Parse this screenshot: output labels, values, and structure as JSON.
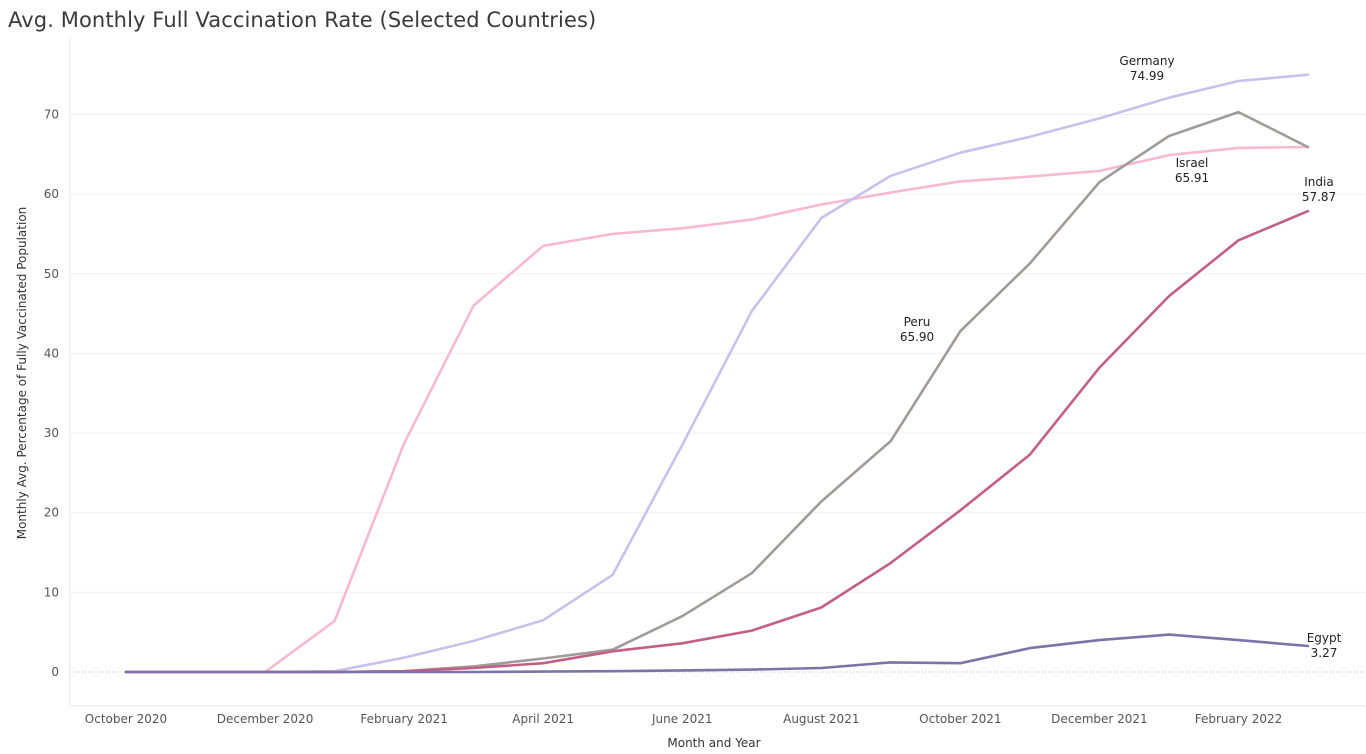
{
  "chart_data": {
    "type": "line",
    "title": "Avg. Monthly Full Vaccination Rate (Selected Countries)",
    "xlabel": "Month and Year",
    "ylabel": "Monthly Avg. Percentage of Fully Vaccinated Population",
    "ylim": [
      -4.5,
      79.5
    ],
    "yticks": [
      0,
      10,
      20,
      30,
      40,
      50,
      60,
      70
    ],
    "grid": true,
    "legend": "none (end-of-line labels)",
    "x": [
      "2020-10",
      "2020-11",
      "2020-12",
      "2021-01",
      "2021-02",
      "2021-03",
      "2021-04",
      "2021-05",
      "2021-06",
      "2021-07",
      "2021-08",
      "2021-09",
      "2021-10",
      "2021-11",
      "2021-12",
      "2022-01",
      "2022-02",
      "2022-03"
    ],
    "xtick_labels": [
      "October 2020",
      "December 2020",
      "February 2021",
      "April 2021",
      "June 2021",
      "August 2021",
      "October 2021",
      "December 2021",
      "February 2022"
    ],
    "series": [
      {
        "name": "Israel",
        "color": "#F7B8D2",
        "label_value": "65.91",
        "values": [
          0,
          0,
          0,
          6.4,
          28.7,
          46.0,
          53.5,
          55.0,
          55.7,
          56.8,
          58.7,
          60.2,
          61.6,
          62.2,
          62.9,
          64.9,
          65.8,
          65.91
        ]
      },
      {
        "name": "Germany",
        "color": "#C9C0EC",
        "label_value": "74.99",
        "values": [
          0,
          0,
          0,
          0.1,
          1.8,
          3.9,
          6.5,
          12.2,
          28.5,
          45.3,
          57.0,
          62.3,
          65.2,
          67.2,
          69.5,
          72.1,
          74.2,
          74.99
        ]
      },
      {
        "name": "Peru",
        "color": "#A09A99",
        "label_value": "65.90",
        "values": [
          0,
          0,
          0,
          0,
          0.1,
          0.7,
          1.7,
          2.8,
          7.0,
          12.4,
          21.4,
          29.0,
          42.8,
          51.3,
          61.5,
          67.3,
          70.3,
          65.9
        ]
      },
      {
        "name": "India",
        "color": "#C25F86",
        "label_value": "57.87",
        "values": [
          0,
          0,
          0,
          0,
          0.1,
          0.5,
          1.1,
          2.6,
          3.6,
          5.2,
          8.1,
          13.7,
          20.3,
          27.3,
          38.2,
          47.2,
          54.2,
          57.87
        ]
      },
      {
        "name": "Egypt",
        "color": "#7F72A8",
        "label_value": "3.27",
        "values": [
          0,
          0,
          0,
          0,
          0,
          0,
          0.05,
          0.1,
          0.2,
          0.3,
          0.5,
          1.2,
          1.1,
          3.0,
          4.0,
          4.7,
          4.0,
          3.27
        ]
      }
    ]
  }
}
